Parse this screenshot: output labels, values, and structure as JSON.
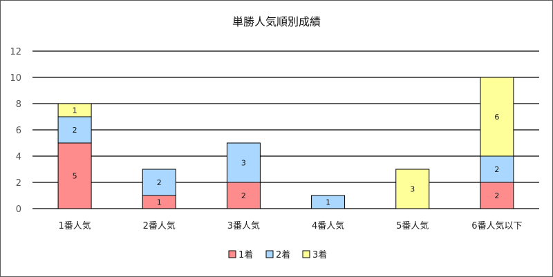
{
  "chart_data": {
    "type": "bar",
    "stacked": true,
    "title": "単勝人気順別成績",
    "categories": [
      "1番人気",
      "2番人気",
      "3番人気",
      "4番人気",
      "5番人気",
      "6番人気以下"
    ],
    "series": [
      {
        "name": "1着",
        "color": "#ff8c8c",
        "values": [
          5,
          1,
          2,
          0,
          0,
          2
        ]
      },
      {
        "name": "2着",
        "color": "#a9d7ff",
        "values": [
          2,
          2,
          3,
          1,
          0,
          2
        ]
      },
      {
        "name": "3着",
        "color": "#ffff99",
        "values": [
          1,
          0,
          0,
          0,
          3,
          6
        ]
      }
    ],
    "ylim": [
      0,
      12
    ],
    "yticks": [
      0,
      2,
      4,
      6,
      8,
      10,
      12
    ],
    "grid": true,
    "legend_position": "bottom",
    "data_labels": true
  }
}
